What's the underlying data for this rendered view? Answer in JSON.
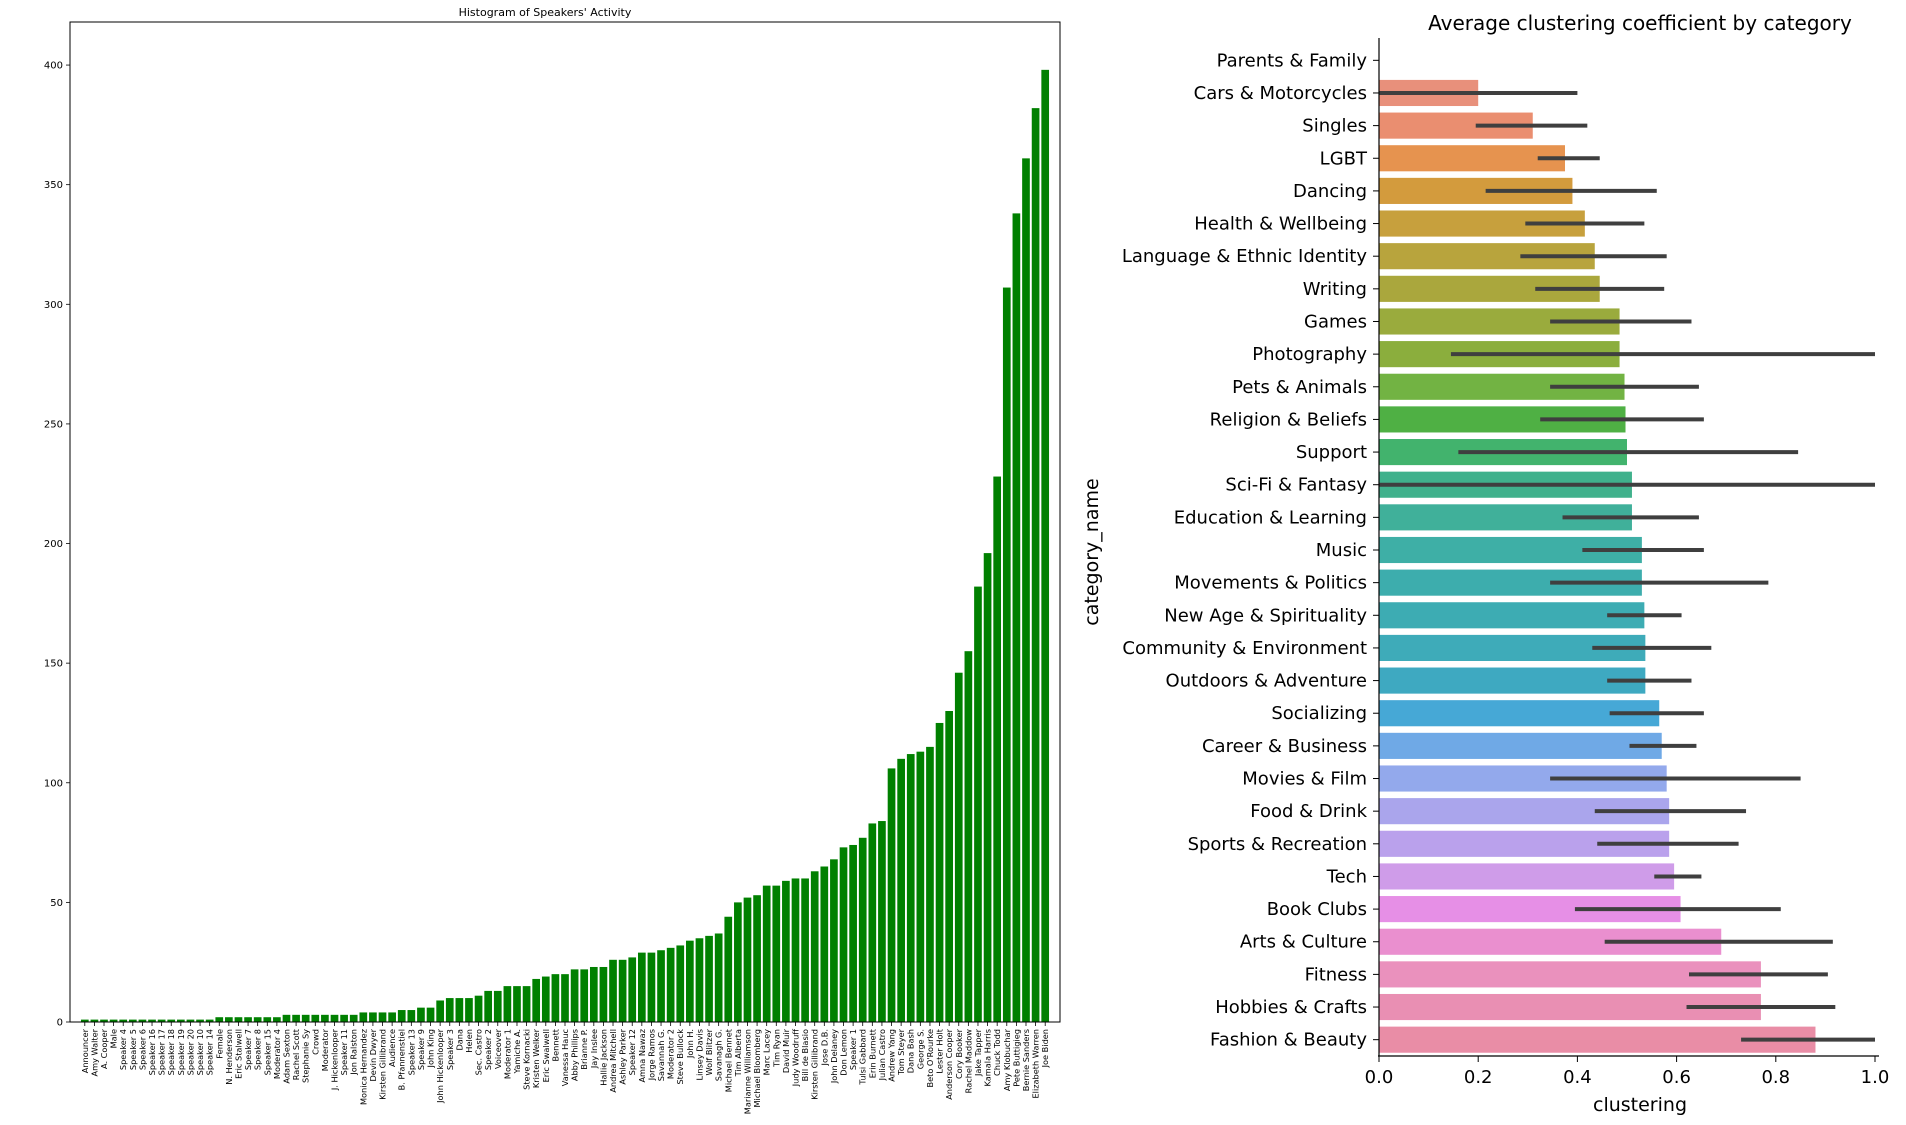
{
  "chart_data": [
    {
      "type": "bar",
      "title": "Histogram of Speakers' Activity",
      "xlabel": "",
      "ylabel": "",
      "ylim": [
        0,
        418
      ],
      "yticks": [
        0,
        50,
        100,
        150,
        200,
        250,
        300,
        350,
        400
      ],
      "bar_color": "#008000",
      "grid": false,
      "categories": [
        "Announcer",
        "Amy Walter",
        "A. Cooper",
        "Male",
        "Speaker 4",
        "Speaker 5",
        "Speaker 6",
        "Speaker 16",
        "Speaker 17",
        "Speaker 18",
        "Speaker 19",
        "Speaker 20",
        "Speaker 10",
        "Speaker 14",
        "Female",
        "N. Henderson",
        "Eric Stalwell",
        "Speaker 7",
        "Speaker 8",
        "Speaker 15",
        "Moderator 4",
        "Adam Sexton",
        "Rachel Scott",
        "Stephanie Sy",
        "Crowd",
        "Moderator",
        "J. Hickenlooper",
        "Speaker 11",
        "Jon Ralston",
        "Monica Hernandez",
        "Devin Dwyer",
        "Kirsten Gillibrand",
        "Audience",
        "B. Pfannenstiel",
        "Speaker 13",
        "Speaker 9",
        "John King",
        "John Hickenlooper",
        "Speaker 3",
        "Dana",
        "Helen",
        "Sec. Castro",
        "Speaker 2",
        "Voiceover",
        "Moderator 1",
        "Yamiche A.",
        "Steve Kornacki",
        "Kristen Welker",
        "Eric Swalwell",
        "Bennett",
        "Vanessa Hauc",
        "Abby Phillips",
        "Brianne P.",
        "Jay Inslee",
        "Hallie Jackson",
        "Andrea Mitchell",
        "Ashley Parker",
        "Speaker 12",
        "Amna Nawaz",
        "Jorge Ramos",
        "Savannah G.",
        "Moderator 2",
        "Steve Bullock",
        "John H.",
        "Linsey Davis",
        "Wolf Blitzer",
        "Savanagh G.",
        "Michael Bennet",
        "Tim Alberta",
        "Marianne Williamson",
        "Michael Bloomberg",
        "Marc Lacey",
        "Tim Ryan",
        "David Muir",
        "Judy Woodruff",
        "Bill de Blasio",
        "Kirsten Gillibrand",
        "Jose D.B.",
        "John Delaney",
        "Don Lemon",
        "Speaker 1",
        "Tulsi Gabbard",
        "Erin Burnett",
        "Julian Castro",
        "Andrew Yang",
        "Tom Steyer",
        "Dana Bash",
        "George S.",
        "Beto O'Rourke",
        "Lester Holt",
        "Anderson Cooper",
        "Cory Booker",
        "Rachel Maddow",
        "Jake Tapper",
        "Kamala Harris",
        "Chuck Todd",
        "Amy Klobuchar",
        "Pete Buttigieg",
        "Bernie Sanders",
        "Elizabeth Warren",
        "Joe Biden"
      ],
      "values": [
        1,
        1,
        1,
        1,
        1,
        1,
        1,
        1,
        1,
        1,
        1,
        1,
        1,
        1,
        2,
        2,
        2,
        2,
        2,
        2,
        2,
        3,
        3,
        3,
        3,
        3,
        3,
        3,
        3,
        4,
        4,
        4,
        4,
        5,
        5,
        6,
        6,
        9,
        10,
        10,
        10,
        11,
        13,
        13,
        15,
        15,
        15,
        18,
        19,
        20,
        20,
        22,
        22,
        23,
        23,
        26,
        26,
        27,
        29,
        29,
        30,
        31,
        32,
        34,
        35,
        36,
        37,
        44,
        50,
        52,
        53,
        57,
        57,
        59,
        60,
        60,
        63,
        65,
        68,
        73,
        74,
        77,
        83,
        84,
        106,
        110,
        112,
        113,
        115,
        125,
        130,
        146,
        155,
        182,
        196,
        228,
        307,
        338,
        361,
        382,
        398
      ]
    },
    {
      "type": "bar",
      "orientation": "horizontal",
      "title": "Average clustering coefficient by category",
      "xlabel": "clustering",
      "ylabel": "category_name",
      "xlim": [
        0.0,
        1.0
      ],
      "xticks": [
        "0.0",
        "0.2",
        "0.4",
        "0.6",
        "0.8",
        "1.0"
      ],
      "error_bar_color": "#3f3f3f",
      "grid": false,
      "categories": [
        "Parents & Family",
        "Cars & Motorcycles",
        "Singles",
        "LGBT",
        "Dancing",
        "Health & Wellbeing",
        "Language & Ethnic Identity",
        "Writing",
        "Games",
        "Photography",
        "Pets & Animals",
        "Religion & Beliefs",
        "Support",
        "Sci-Fi & Fantasy",
        "Education & Learning",
        "Music",
        "Movements & Politics",
        "New Age & Spirituality",
        "Community & Environment",
        "Outdoors & Adventure",
        "Socializing",
        "Career & Business",
        "Movies & Film",
        "Food & Drink",
        "Sports & Recreation",
        "Tech",
        "Book Clubs",
        "Arts & Culture",
        "Fitness",
        "Hobbies & Crafts",
        "Fashion & Beauty"
      ],
      "values": [
        0.0,
        0.2,
        0.31,
        0.375,
        0.39,
        0.415,
        0.435,
        0.445,
        0.485,
        0.485,
        0.495,
        0.497,
        0.5,
        0.51,
        0.51,
        0.53,
        0.53,
        0.535,
        0.537,
        0.537,
        0.565,
        0.57,
        0.58,
        0.585,
        0.585,
        0.595,
        0.608,
        0.69,
        0.77,
        0.77,
        0.88
      ],
      "ci_low": [
        0.0,
        0.0,
        0.195,
        0.32,
        0.215,
        0.295,
        0.285,
        0.315,
        0.345,
        0.145,
        0.345,
        0.325,
        0.16,
        0.0,
        0.37,
        0.41,
        0.345,
        0.46,
        0.43,
        0.46,
        0.465,
        0.505,
        0.345,
        0.435,
        0.44,
        0.555,
        0.395,
        0.455,
        0.625,
        0.62,
        0.73
      ],
      "ci_high": [
        0.0,
        0.4,
        0.42,
        0.445,
        0.56,
        0.535,
        0.58,
        0.575,
        0.63,
        1.0,
        0.645,
        0.655,
        0.845,
        1.0,
        0.645,
        0.655,
        0.785,
        0.61,
        0.67,
        0.63,
        0.655,
        0.64,
        0.85,
        0.74,
        0.725,
        0.65,
        0.81,
        0.915,
        0.905,
        0.92,
        1.0
      ],
      "colors": [
        "#e98d93",
        "#e8907b",
        "#ea8e70",
        "#e6934f",
        "#d39b3d",
        "#c7a03d",
        "#b8a43d",
        "#aaa73d",
        "#9aab3d",
        "#8bae3d",
        "#72b343",
        "#4fb044",
        "#42b36d",
        "#40b18c",
        "#40b09a",
        "#3eafa6",
        "#3dadad",
        "#3dacb3",
        "#3eabb9",
        "#3ea9c1",
        "#46a8d6",
        "#6fa9e6",
        "#93a9ec",
        "#aaa5ec",
        "#baa1ec",
        "#cf9ce9",
        "#e68fe6",
        "#ea8fcf",
        "#ea91bd",
        "#e98fb3",
        "#e98da6"
      ]
    }
  ]
}
